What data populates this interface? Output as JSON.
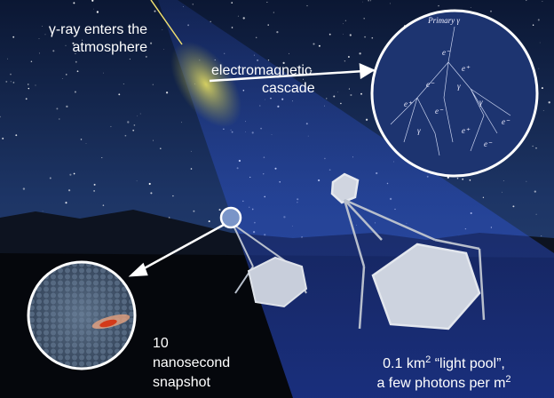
{
  "labels": {
    "gamma_entry": [
      "γ-ray enters the",
      "atmosphere"
    ],
    "cascade": [
      "electromagnetic",
      "cascade"
    ],
    "snapshot": [
      "10",
      "nanosecond",
      "snapshot"
    ],
    "light_pool": {
      "line1": {
        "text": "0.1 km",
        "sup": "2",
        "rest": " “light pool”,"
      },
      "line2": {
        "text": "a few photons per m",
        "sup": "2"
      }
    }
  },
  "cascade_inset": {
    "title": "Primary γ",
    "particles": [
      "e⁻",
      "e⁺",
      "e⁻",
      "γ",
      "e⁺",
      "γ",
      "e⁻",
      "e⁻",
      "γ",
      "e⁺",
      "e⁻"
    ]
  }
}
